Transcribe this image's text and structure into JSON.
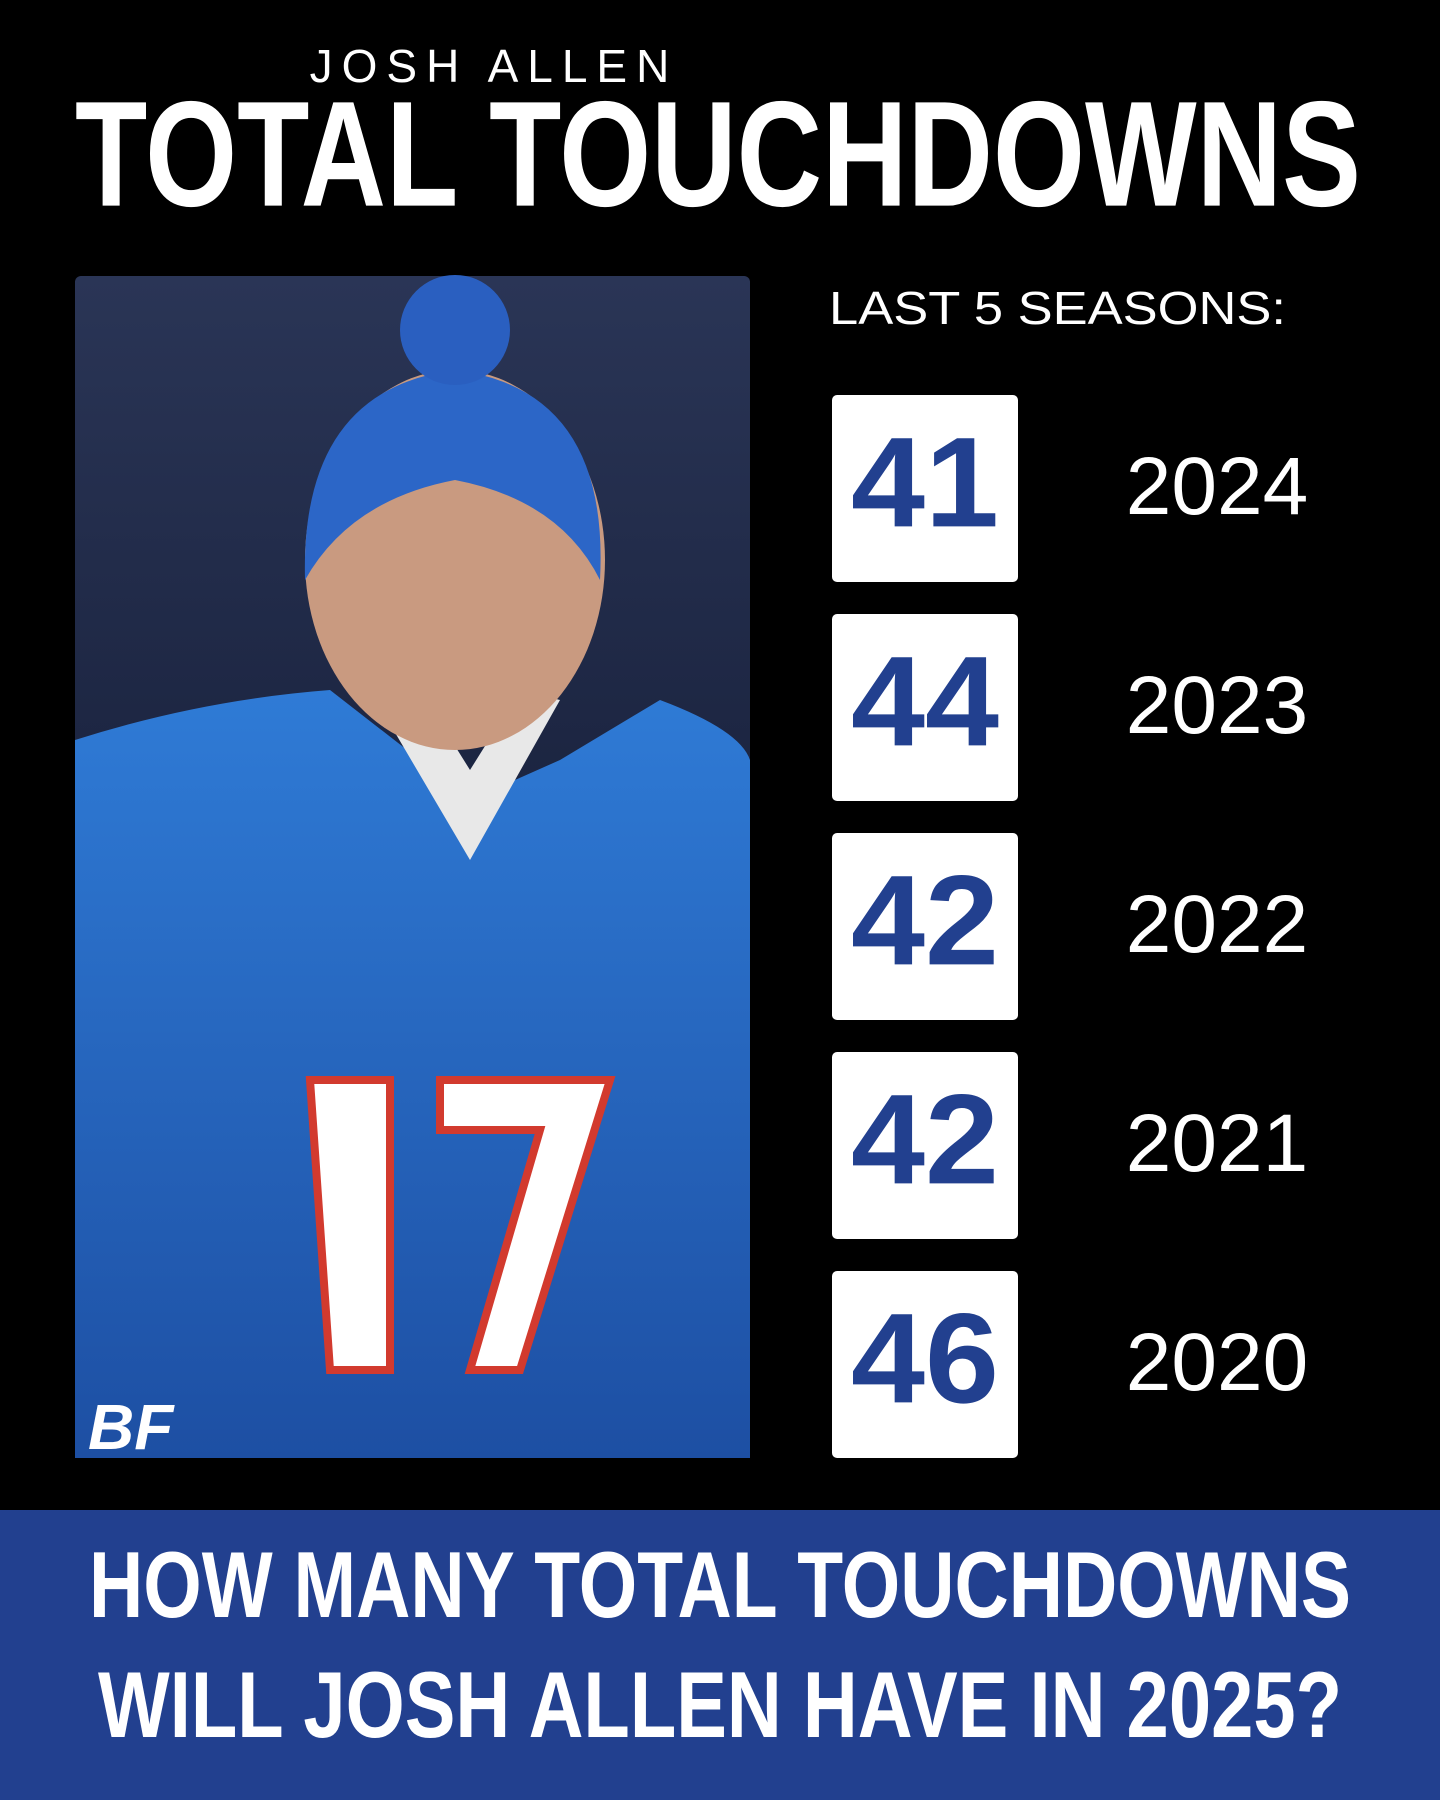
{
  "header": {
    "kicker": "JOSH ALLEN",
    "title": "TOTAL TOUCHDOWNS"
  },
  "photo": {
    "logo": "BF"
  },
  "stats": {
    "label": "LAST 5 SEASONS:",
    "rows": [
      {
        "touchdowns": 41,
        "year": "2024"
      },
      {
        "touchdowns": 44,
        "year": "2023"
      },
      {
        "touchdowns": 42,
        "year": "2022"
      },
      {
        "touchdowns": 42,
        "year": "2021"
      },
      {
        "touchdowns": 46,
        "year": "2020"
      }
    ]
  },
  "footer": {
    "lines": [
      "HOW MANY TOTAL TOUCHDOWNS",
      "WILL JOSH ALLEN HAVE IN 2025?"
    ]
  }
}
